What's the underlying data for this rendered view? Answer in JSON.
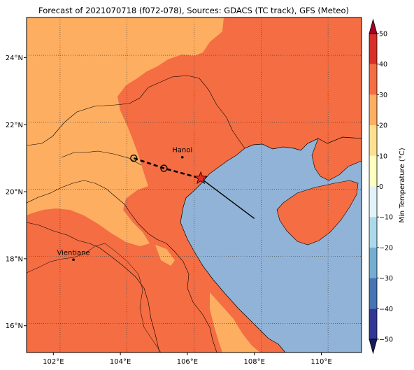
{
  "title": "Forecast of 2021070718 (f072-078), Sources: GDACS (TC track), GFS (Meteo)",
  "map": {
    "lon_range": [
      101.2,
      111.2
    ],
    "lat_range": [
      15.2,
      25.2
    ],
    "lon_ticks": [
      {
        "value": 102,
        "label": "102°E"
      },
      {
        "value": 104,
        "label": "104°E"
      },
      {
        "value": 106,
        "label": "106°E"
      },
      {
        "value": 108,
        "label": "108°E"
      },
      {
        "value": 110,
        "label": "110°E"
      }
    ],
    "lat_ticks": [
      {
        "value": 16,
        "label": "16°N"
      },
      {
        "value": 18,
        "label": "18°N"
      },
      {
        "value": 20,
        "label": "20°N"
      },
      {
        "value": 22,
        "label": "22°N"
      },
      {
        "value": 24,
        "label": "24°N"
      }
    ],
    "gridlines": true,
    "colors": {
      "sea": "#91b3d7",
      "band_20_30": "#f46d43",
      "band_10_20": "#fdae61"
    },
    "cities": [
      {
        "name": "Hanoi",
        "lon": 105.85,
        "lat": 21.03
      },
      {
        "name": "Vientiane",
        "lon": 102.6,
        "lat": 17.97
      }
    ],
    "track": {
      "past": [
        {
          "lon": 104.4,
          "lat": 21.0
        },
        {
          "lon": 105.3,
          "lat": 20.7
        },
        {
          "lon": 106.4,
          "lat": 20.4
        }
      ],
      "current": {
        "lon": 106.4,
        "lat": 20.4
      },
      "forecast_line_end": {
        "lon": 108.0,
        "lat": 19.2
      }
    }
  },
  "colorbar": {
    "label": "Min Temperature (°C)",
    "levels": [
      -50,
      -40,
      -30,
      -20,
      -10,
      0,
      10,
      20,
      30,
      40,
      50
    ],
    "tick_labels": [
      "−50",
      "−40",
      "−30",
      "−20",
      "−10",
      "0",
      "10",
      "20",
      "30",
      "40",
      "50"
    ],
    "colors": [
      "#313695",
      "#4575b4",
      "#74add1",
      "#abd9e9",
      "#e0f3f8",
      "#ffffbf",
      "#fee090",
      "#fdae61",
      "#f46d43",
      "#d73027",
      "#a50026"
    ],
    "under_color": "#1a1a5e",
    "over_color": "#a50026"
  }
}
